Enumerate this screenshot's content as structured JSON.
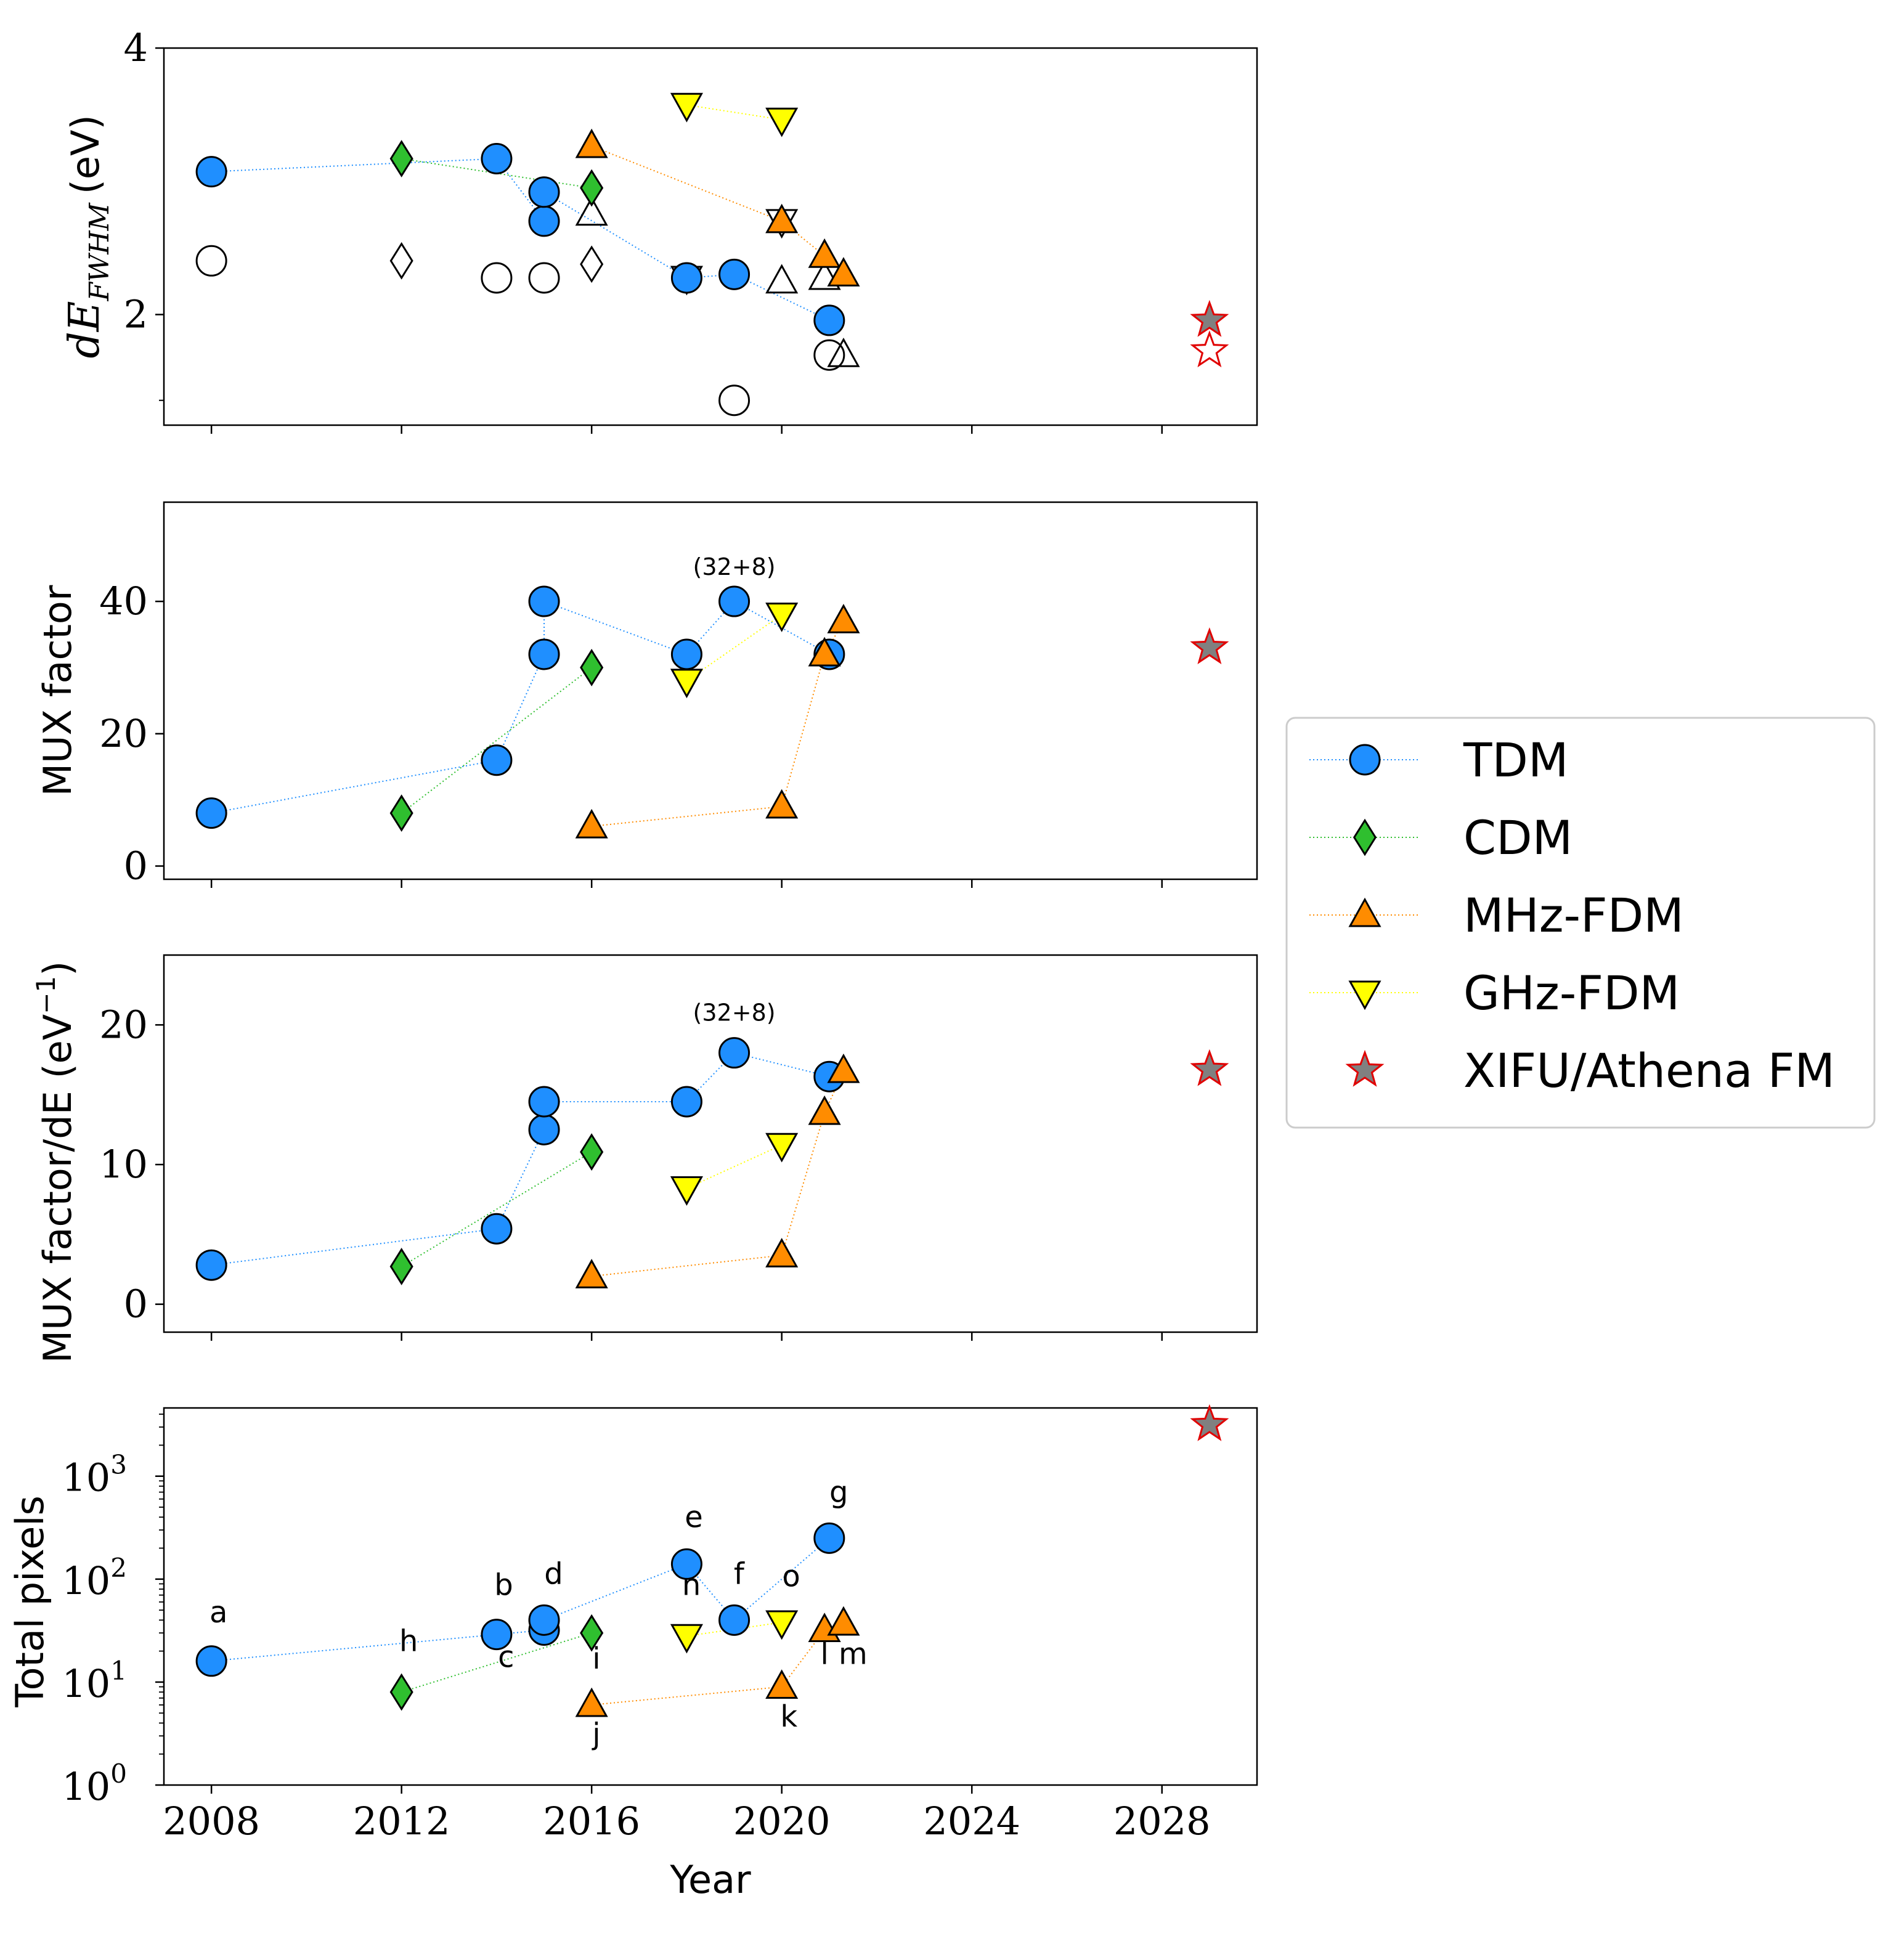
{
  "chart_data": {
    "type": "scatter",
    "xlabel": "Year",
    "x_ticks": [
      2008,
      2012,
      2016,
      2020,
      2024,
      2028
    ],
    "xlim": [
      2007,
      2030
    ],
    "legend": {
      "placement": "center-right",
      "entries": [
        {
          "key": "TDM",
          "label": "TDM",
          "color": "#1f8fff",
          "marker": "circle"
        },
        {
          "key": "CDM",
          "label": "CDM",
          "color": "#2fbf2f",
          "marker": "diamond"
        },
        {
          "key": "MHz",
          "label": "MHz-FDM",
          "color": "#ff8c00",
          "marker": "triangle-up"
        },
        {
          "key": "GHz",
          "label": "GHz-FDM",
          "color": "#ffff00",
          "marker": "triangle-down"
        },
        {
          "key": "XIFU",
          "label": "XIFU/Athena FM",
          "color": "#808080",
          "edge": "#e00000",
          "marker": "star"
        }
      ]
    },
    "panels": [
      {
        "key": "dE",
        "ylabel_main": "dE",
        "ylabel_sub": "FWHM",
        "ylabel_unit": "(eV)",
        "scale": "log",
        "ylim": [
          1.5,
          4.0
        ],
        "y_ticks": [
          {
            "value": 2,
            "label": "2"
          },
          {
            "value": 4,
            "label": "4"
          }
        ],
        "minor_ticks": [
          1.6
        ],
        "series": [
          {
            "key": "TDM",
            "points": [
              [
                2008,
                2.9
              ],
              [
                2014,
                3.0
              ],
              [
                2015,
                2.55
              ],
              [
                2015,
                2.75
              ],
              [
                2018,
                2.2
              ],
              [
                2019,
                2.22
              ],
              [
                2021,
                1.97
              ]
            ]
          },
          {
            "key": "CDM",
            "points": [
              [
                2012,
                3.0
              ],
              [
                2016,
                2.78
              ]
            ]
          },
          {
            "key": "MHz",
            "points": [
              [
                2016,
                3.1
              ],
              [
                2020,
                2.55
              ],
              [
                2020.9,
                2.33
              ],
              [
                2021.3,
                2.22
              ]
            ]
          },
          {
            "key": "GHz",
            "points": [
              [
                2018,
                3.45
              ],
              [
                2020,
                3.32
              ]
            ]
          },
          {
            "key": "XIFU",
            "points": [
              [
                2029,
                1.97
              ]
            ]
          }
        ],
        "open_markers": [
          {
            "marker": "circle",
            "x": 2008,
            "y": 2.3
          },
          {
            "marker": "circle",
            "x": 2014,
            "y": 2.2
          },
          {
            "marker": "circle",
            "x": 2015,
            "y": 2.2
          },
          {
            "marker": "circle",
            "x": 2019,
            "y": 1.6
          },
          {
            "marker": "circle",
            "x": 2021,
            "y": 1.8
          },
          {
            "marker": "diamond",
            "x": 2012,
            "y": 2.3
          },
          {
            "marker": "diamond",
            "x": 2016,
            "y": 2.28
          },
          {
            "marker": "triangle-up",
            "x": 2016,
            "y": 2.6
          },
          {
            "marker": "triangle-up",
            "x": 2020,
            "y": 2.18
          },
          {
            "marker": "triangle-up",
            "x": 2020.9,
            "y": 2.2
          },
          {
            "marker": "triangle-up",
            "x": 2021.3,
            "y": 1.8
          },
          {
            "marker": "triangle-down",
            "x": 2018,
            "y": 2.2
          },
          {
            "marker": "triangle-down",
            "x": 2020,
            "y": 2.55
          },
          {
            "marker": "star",
            "x": 2029,
            "y": 1.82
          }
        ]
      },
      {
        "key": "mux",
        "ylabel": "MUX factor",
        "scale": "linear",
        "ylim": [
          -2,
          55
        ],
        "y_ticks": [
          {
            "value": 0,
            "label": "0"
          },
          {
            "value": 20,
            "label": "20"
          },
          {
            "value": 40,
            "label": "40"
          }
        ],
        "series": [
          {
            "key": "TDM",
            "points": [
              [
                2008,
                8
              ],
              [
                2014,
                16
              ],
              [
                2015,
                32
              ],
              [
                2015,
                40
              ],
              [
                2018,
                32
              ],
              [
                2019,
                40
              ],
              [
                2021,
                32
              ]
            ]
          },
          {
            "key": "CDM",
            "points": [
              [
                2012,
                8
              ],
              [
                2016,
                30
              ]
            ]
          },
          {
            "key": "MHz",
            "points": [
              [
                2016,
                6
              ],
              [
                2020,
                9
              ],
              [
                2020.9,
                32
              ],
              [
                2021.3,
                37
              ]
            ]
          },
          {
            "key": "GHz",
            "points": [
              [
                2018,
                28
              ],
              [
                2020,
                38
              ]
            ]
          },
          {
            "key": "XIFU",
            "points": [
              [
                2029,
                33
              ]
            ]
          }
        ],
        "annotations": [
          {
            "text": "(32+8)",
            "x": 2019,
            "y": 44
          }
        ]
      },
      {
        "key": "muxdE",
        "ylabel": "MUX factor/dE (eV",
        "ylabel_sup": "−1",
        "ylabel_close": ")",
        "scale": "linear",
        "ylim": [
          -2,
          25
        ],
        "y_ticks": [
          {
            "value": 0,
            "label": "0"
          },
          {
            "value": 10,
            "label": "10"
          },
          {
            "value": 20,
            "label": "20"
          }
        ],
        "series": [
          {
            "key": "TDM",
            "points": [
              [
                2008,
                2.8
              ],
              [
                2014,
                5.4
              ],
              [
                2015,
                12.5
              ],
              [
                2015,
                14.5
              ],
              [
                2018,
                14.5
              ],
              [
                2019,
                18.0
              ],
              [
                2021,
                16.3
              ]
            ]
          },
          {
            "key": "CDM",
            "points": [
              [
                2012,
                2.7
              ],
              [
                2016,
                10.9
              ]
            ]
          },
          {
            "key": "MHz",
            "points": [
              [
                2016,
                2.0
              ],
              [
                2020,
                3.5
              ],
              [
                2020.9,
                13.7
              ],
              [
                2021.3,
                16.7
              ]
            ]
          },
          {
            "key": "GHz",
            "points": [
              [
                2018,
                8.3
              ],
              [
                2020,
                11.4
              ]
            ]
          },
          {
            "key": "XIFU",
            "points": [
              [
                2029,
                16.8
              ]
            ]
          }
        ],
        "annotations": [
          {
            "text": "(32+8)",
            "x": 2019,
            "y": 20.3
          }
        ]
      },
      {
        "key": "pix",
        "ylabel": "Total pixels",
        "scale": "log",
        "ylim": [
          1,
          4600
        ],
        "y_ticks": [
          {
            "value": 1,
            "base": "10",
            "exp": "0"
          },
          {
            "value": 10,
            "base": "10",
            "exp": "1"
          },
          {
            "value": 100,
            "base": "10",
            "exp": "2"
          },
          {
            "value": 1000,
            "base": "10",
            "exp": "3"
          }
        ],
        "series": [
          {
            "key": "TDM",
            "points": [
              [
                2008,
                16
              ],
              [
                2014,
                29
              ],
              [
                2015,
                32
              ],
              [
                2015,
                40
              ],
              [
                2018,
                140
              ],
              [
                2019,
                40
              ],
              [
                2021,
                250
              ]
            ]
          },
          {
            "key": "CDM",
            "points": [
              [
                2012,
                8
              ],
              [
                2016,
                30
              ]
            ]
          },
          {
            "key": "MHz",
            "points": [
              [
                2016,
                6
              ],
              [
                2020,
                9
              ],
              [
                2020.9,
                32
              ],
              [
                2021.3,
                37
              ]
            ]
          },
          {
            "key": "GHz",
            "points": [
              [
                2018,
                28
              ],
              [
                2020,
                38
              ]
            ]
          },
          {
            "key": "XIFU",
            "points": [
              [
                2029,
                3168
              ]
            ]
          }
        ],
        "annotations": [
          {
            "text": "a",
            "x": 2008.15,
            "y": 38
          },
          {
            "text": "b",
            "x": 2014.15,
            "y": 70
          },
          {
            "text": "c",
            "x": 2014.2,
            "y": 14
          },
          {
            "text": "d",
            "x": 2015.2,
            "y": 90
          },
          {
            "text": "e",
            "x": 2018.15,
            "y": 320
          },
          {
            "text": "f",
            "x": 2019.1,
            "y": 90
          },
          {
            "text": "g",
            "x": 2021.2,
            "y": 560
          },
          {
            "text": "h",
            "x": 2012.15,
            "y": 20
          },
          {
            "text": "i",
            "x": 2016.1,
            "y": 13.5
          },
          {
            "text": "j",
            "x": 2016.1,
            "y": 2.5
          },
          {
            "text": "k",
            "x": 2020.15,
            "y": 3.7
          },
          {
            "text": "l",
            "x": 2020.9,
            "y": 15
          },
          {
            "text": "m",
            "x": 2021.5,
            "y": 15
          },
          {
            "text": "n",
            "x": 2018.1,
            "y": 70
          },
          {
            "text": "o",
            "x": 2020.2,
            "y": 85
          }
        ]
      }
    ]
  }
}
